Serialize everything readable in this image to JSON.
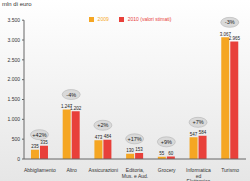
{
  "chart_data": {
    "type": "bar",
    "y_label": "mln di euro",
    "categories": [
      "Abbigliamento",
      "Altro",
      "Assicurazioni",
      "Editoria, Mus. e Aud.",
      "Grocery",
      "Informatica ed Elettronica",
      "Turismo"
    ],
    "series": [
      {
        "name": "2009",
        "color": "#f5a623",
        "values": [
          235,
          1247,
          473,
          130,
          55,
          547,
          3067
        ],
        "value_labels": [
          "235",
          "1.247",
          "473",
          "130",
          "55",
          "547",
          "3.067"
        ]
      },
      {
        "name": "2010 (valori stimati)",
        "color": "#e8403a",
        "values": [
          335,
          1202,
          484,
          153,
          60,
          584,
          2965
        ],
        "value_labels": [
          "335",
          "1.202",
          "484",
          "153",
          "60",
          "584",
          "2.965"
        ]
      }
    ],
    "annotations": [
      "+42%",
      "-4%",
      "+2%",
      "+17%",
      "+9%",
      "+7%",
      "-3%"
    ],
    "ylim": [
      0,
      3500
    ],
    "yticks": [
      0,
      500,
      {
        "value": 1000,
        "label": "1.000"
      },
      {
        "value": 1500,
        "label": "1.500"
      },
      {
        "value": 2000,
        "label": "2.000"
      },
      {
        "value": 2500,
        "label": "2.500"
      },
      {
        "value": 3000,
        "label": "3.000"
      },
      {
        "value": 3500,
        "label": "3.500"
      }
    ],
    "grid": false,
    "legend": "top",
    "data_labels": true
  }
}
